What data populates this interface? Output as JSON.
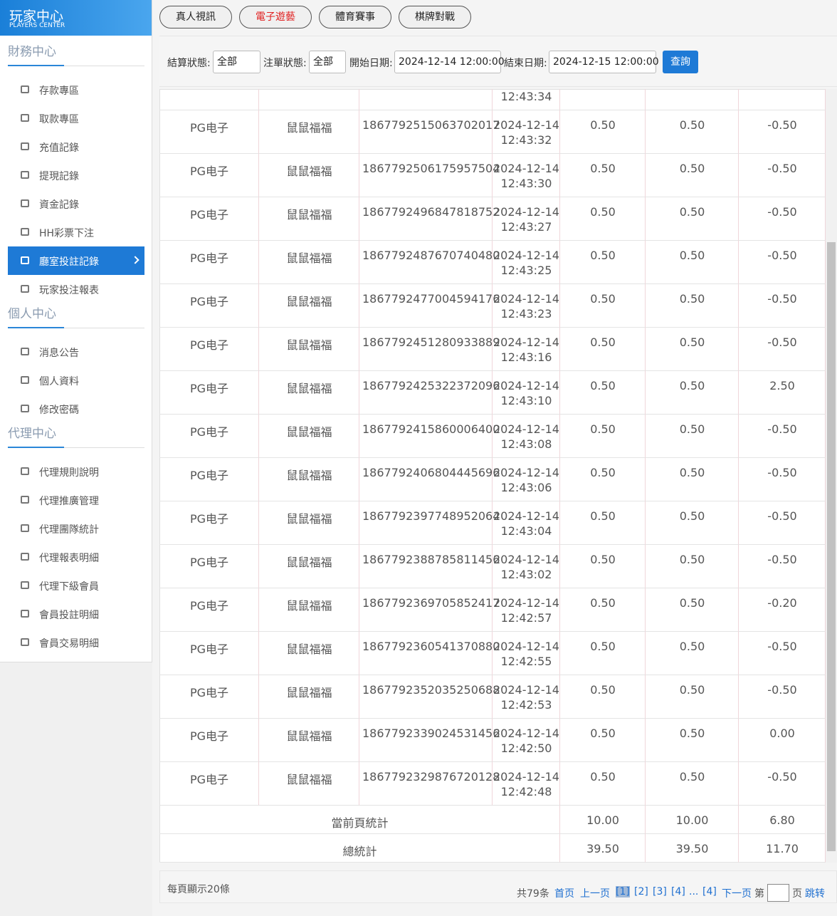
{
  "sidebar": {
    "logo_title": "玩家中心",
    "logo_subtitle": "PLAYERS CENTER",
    "sections": [
      {
        "title": "財務中心",
        "items": [
          {
            "label": "存款專區"
          },
          {
            "label": "取款專區"
          },
          {
            "label": "充值記錄"
          },
          {
            "label": "提現記錄"
          },
          {
            "label": "資金記錄"
          },
          {
            "label": "HH彩票下注"
          },
          {
            "label": "廳室投註記錄",
            "active": true
          },
          {
            "label": "玩家投注報表"
          }
        ]
      },
      {
        "title": "個人中心",
        "items": [
          {
            "label": "消息公告"
          },
          {
            "label": "個人資料"
          },
          {
            "label": "修改密碼"
          }
        ]
      },
      {
        "title": "代理中心",
        "items": [
          {
            "label": "代理規則說明"
          },
          {
            "label": "代理推廣管理"
          },
          {
            "label": "代理團隊統計"
          },
          {
            "label": "代理報表明細"
          },
          {
            "label": "代理下級會員"
          },
          {
            "label": "會員投註明細"
          },
          {
            "label": "會員交易明細"
          }
        ]
      }
    ]
  },
  "tabs": [
    {
      "label": "真人視訊"
    },
    {
      "label": "電子遊藝",
      "active": true
    },
    {
      "label": "體育賽事"
    },
    {
      "label": "棋牌對戰"
    }
  ],
  "filters": {
    "settle_label": "結算狀態:",
    "settle_value": "全部",
    "order_label": "注單狀態:",
    "order_value": "全部",
    "start_label": "開始日期:",
    "start_value": "2024-12-14 12:00:00",
    "end_label": "結束日期:",
    "end_value": "2024-12-15 12:00:00",
    "submit": "查詢"
  },
  "table": {
    "partial_row_time": "12:43:34",
    "rows": [
      [
        "PG电子",
        "鼠鼠福福",
        "1867792515063702017",
        "2024-12-14",
        "12:43:32",
        "0.50",
        "0.50",
        "-0.50"
      ],
      [
        "PG电子",
        "鼠鼠福福",
        "1867792506175957504",
        "2024-12-14",
        "12:43:30",
        "0.50",
        "0.50",
        "-0.50"
      ],
      [
        "PG电子",
        "鼠鼠福福",
        "1867792496847818752",
        "2024-12-14",
        "12:43:27",
        "0.50",
        "0.50",
        "-0.50"
      ],
      [
        "PG电子",
        "鼠鼠福福",
        "1867792487670740480",
        "2024-12-14",
        "12:43:25",
        "0.50",
        "0.50",
        "-0.50"
      ],
      [
        "PG电子",
        "鼠鼠福福",
        "1867792477004594176",
        "2024-12-14",
        "12:43:23",
        "0.50",
        "0.50",
        "-0.50"
      ],
      [
        "PG电子",
        "鼠鼠福福",
        "1867792451280933889",
        "2024-12-14",
        "12:43:16",
        "0.50",
        "0.50",
        "-0.50"
      ],
      [
        "PG电子",
        "鼠鼠福福",
        "1867792425322372096",
        "2024-12-14",
        "12:43:10",
        "0.50",
        "0.50",
        "2.50"
      ],
      [
        "PG电子",
        "鼠鼠福福",
        "1867792415860006400",
        "2024-12-14",
        "12:43:08",
        "0.50",
        "0.50",
        "-0.50"
      ],
      [
        "PG电子",
        "鼠鼠福福",
        "1867792406804445696",
        "2024-12-14",
        "12:43:06",
        "0.50",
        "0.50",
        "-0.50"
      ],
      [
        "PG电子",
        "鼠鼠福福",
        "1867792397748952064",
        "2024-12-14",
        "12:43:04",
        "0.50",
        "0.50",
        "-0.50"
      ],
      [
        "PG电子",
        "鼠鼠福福",
        "1867792388785811456",
        "2024-12-14",
        "12:43:02",
        "0.50",
        "0.50",
        "-0.50"
      ],
      [
        "PG电子",
        "鼠鼠福福",
        "1867792369705852417",
        "2024-12-14",
        "12:42:57",
        "0.50",
        "0.50",
        "-0.20"
      ],
      [
        "PG电子",
        "鼠鼠福福",
        "1867792360541370880",
        "2024-12-14",
        "12:42:55",
        "0.50",
        "0.50",
        "-0.50"
      ],
      [
        "PG电子",
        "鼠鼠福福",
        "1867792352035250688",
        "2024-12-14",
        "12:42:53",
        "0.50",
        "0.50",
        "-0.50"
      ],
      [
        "PG电子",
        "鼠鼠福福",
        "1867792339024531456",
        "2024-12-14",
        "12:42:50",
        "0.50",
        "0.50",
        "0.00"
      ],
      [
        "PG电子",
        "鼠鼠福福",
        "1867792329876720128",
        "2024-12-14",
        "12:42:48",
        "0.50",
        "0.50",
        "-0.50"
      ]
    ],
    "summary": [
      {
        "label": "當前頁統計",
        "values": [
          "10.00",
          "10.00",
          "6.80"
        ]
      },
      {
        "label": "總統計",
        "values": [
          "39.50",
          "39.50",
          "11.70"
        ]
      }
    ]
  },
  "footer": {
    "page_size": "每頁顯示20條",
    "total": "共79条",
    "first": "首页",
    "prev": "上一页",
    "pages": [
      "[1]",
      "[2]",
      "[3]",
      "[4]",
      "...",
      "[4]"
    ],
    "next": "下一页",
    "goto_prefix": "第",
    "goto_suffix": "页",
    "jump": "跳转"
  }
}
